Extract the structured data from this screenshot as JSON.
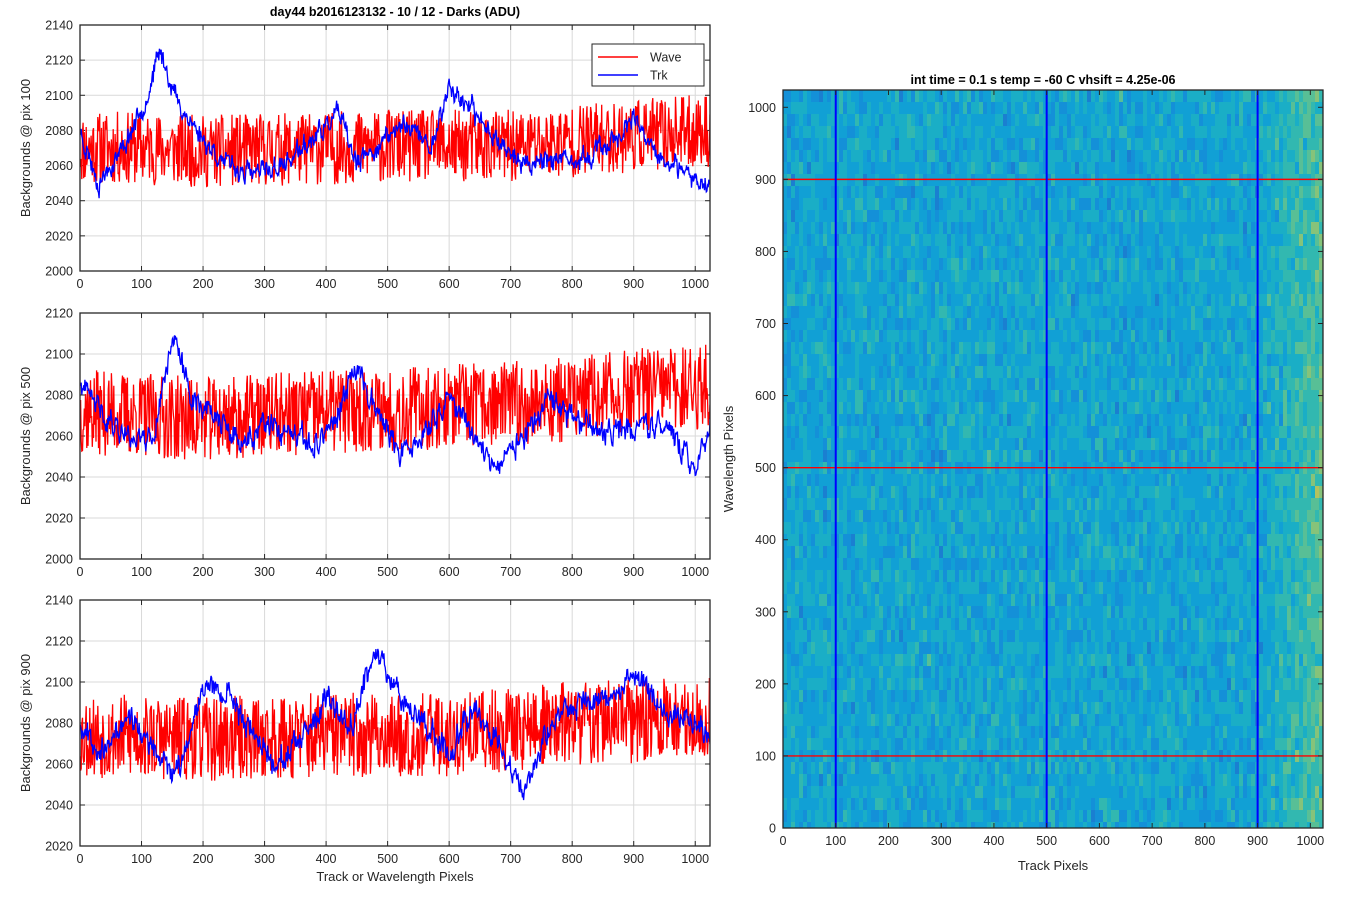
{
  "figure_title": "day44 b2016123132 - 10 / 12 - Darks (ADU)",
  "colors": {
    "wave": "#ff0000",
    "trk": "#0000ff",
    "grid": "#d9d9d9",
    "axis": "#262626"
  },
  "chart_data": [
    {
      "type": "line",
      "panel": "top-left",
      "title": "day44 b2016123132 - 10 / 12 - Darks (ADU)",
      "xlabel": "",
      "ylabel": "Backgrounds @ pix 100",
      "xlim": [
        0,
        1024
      ],
      "ylim": [
        2000,
        2140
      ],
      "xticks": [
        0,
        100,
        200,
        300,
        400,
        500,
        600,
        700,
        800,
        900,
        1000
      ],
      "yticks": [
        2000,
        2020,
        2040,
        2060,
        2080,
        2100,
        2120,
        2140
      ],
      "grid": true,
      "legend": "top-right",
      "series": [
        {
          "name": "Wave",
          "color": "#ff0000",
          "mean": 2070,
          "noise": 13,
          "seed": 11,
          "x": [
            0,
            100,
            200,
            300,
            400,
            500,
            600,
            700,
            800,
            900,
            1024
          ],
          "y": [
            2070,
            2070,
            2068,
            2069,
            2070,
            2071,
            2071,
            2071,
            2074,
            2077,
            2080
          ]
        },
        {
          "name": "Trk",
          "color": "#0000ff",
          "mean": 2070,
          "noise": 4,
          "seed": 23,
          "x": [
            0,
            30,
            70,
            110,
            130,
            160,
            200,
            240,
            280,
            330,
            380,
            420,
            450,
            480,
            530,
            570,
            600,
            640,
            680,
            720,
            760,
            800,
            850,
            900,
            940,
            980,
            1024
          ],
          "y": [
            2080,
            2050,
            2070,
            2100,
            2125,
            2095,
            2075,
            2060,
            2055,
            2060,
            2075,
            2090,
            2060,
            2070,
            2085,
            2070,
            2105,
            2090,
            2075,
            2060,
            2065,
            2060,
            2070,
            2085,
            2065,
            2055,
            2050
          ]
        }
      ]
    },
    {
      "type": "line",
      "panel": "middle-left",
      "title": "",
      "xlabel": "",
      "ylabel": "Backgrounds @ pix 500",
      "xlim": [
        0,
        1024
      ],
      "ylim": [
        2000,
        2120
      ],
      "xticks": [
        0,
        100,
        200,
        300,
        400,
        500,
        600,
        700,
        800,
        900,
        1000
      ],
      "yticks": [
        2000,
        2020,
        2040,
        2060,
        2080,
        2100,
        2120
      ],
      "grid": true,
      "series": [
        {
          "name": "Wave",
          "color": "#ff0000",
          "mean": 2072,
          "noise": 13,
          "seed": 37,
          "x": [
            0,
            200,
            400,
            600,
            800,
            900,
            1024
          ],
          "y": [
            2072,
            2068,
            2072,
            2074,
            2078,
            2082,
            2084
          ]
        },
        {
          "name": "Trk",
          "color": "#0000ff",
          "mean": 2065,
          "noise": 4,
          "seed": 41,
          "x": [
            0,
            40,
            80,
            120,
            150,
            180,
            220,
            260,
            300,
            340,
            380,
            420,
            450,
            480,
            520,
            560,
            600,
            640,
            680,
            720,
            760,
            800,
            850,
            900,
            950,
            1000,
            1024
          ],
          "y": [
            2085,
            2070,
            2060,
            2060,
            2110,
            2080,
            2070,
            2055,
            2065,
            2060,
            2055,
            2070,
            2095,
            2075,
            2050,
            2060,
            2080,
            2060,
            2045,
            2060,
            2075,
            2070,
            2060,
            2065,
            2065,
            2045,
            2065
          ]
        }
      ]
    },
    {
      "type": "line",
      "panel": "bottom-left",
      "title": "",
      "xlabel": "Track or Wavelength Pixels",
      "ylabel": "Backgrounds @ pix 900",
      "xlim": [
        0,
        1024
      ],
      "ylim": [
        2020,
        2140
      ],
      "xticks": [
        0,
        100,
        200,
        300,
        400,
        500,
        600,
        700,
        800,
        900,
        1000
      ],
      "yticks": [
        2020,
        2040,
        2060,
        2080,
        2100,
        2120,
        2140
      ],
      "grid": true,
      "series": [
        {
          "name": "Wave",
          "color": "#ff0000",
          "mean": 2075,
          "noise": 13,
          "seed": 53,
          "x": [
            0,
            200,
            400,
            600,
            800,
            1024
          ],
          "y": [
            2074,
            2072,
            2074,
            2074,
            2080,
            2082
          ]
        },
        {
          "name": "Trk",
          "color": "#0000ff",
          "mean": 2070,
          "noise": 4,
          "seed": 67,
          "x": [
            0,
            40,
            80,
            120,
            160,
            200,
            240,
            280,
            320,
            360,
            400,
            440,
            480,
            520,
            560,
            600,
            640,
            680,
            720,
            760,
            800,
            850,
            900,
            950,
            1000,
            1024
          ],
          "y": [
            2080,
            2065,
            2085,
            2065,
            2055,
            2100,
            2095,
            2075,
            2060,
            2070,
            2090,
            2080,
            2115,
            2095,
            2080,
            2065,
            2090,
            2070,
            2045,
            2075,
            2090,
            2090,
            2105,
            2085,
            2080,
            2075
          ]
        }
      ]
    },
    {
      "type": "heatmap",
      "panel": "right",
      "title": "int time = 0.1 s   temp = -60 C   vhsift = 4.25e-06",
      "xlabel": "Track Pixels",
      "ylabel": "Wavelength Pixels",
      "xlim": [
        0,
        1024
      ],
      "ylim": [
        0,
        1024
      ],
      "xticks": [
        0,
        100,
        200,
        300,
        400,
        500,
        600,
        700,
        800,
        900,
        1000
      ],
      "yticks": [
        0,
        100,
        200,
        300,
        400,
        500,
        600,
        700,
        800,
        900,
        1000
      ],
      "colormap": "parula",
      "vertical_markers": {
        "color": "#0000ff",
        "x": [
          100,
          500,
          900
        ]
      },
      "horizontal_markers": {
        "color": "#ff0000",
        "y": [
          100,
          500,
          900
        ]
      }
    }
  ],
  "legend": {
    "entries": [
      {
        "label": "Wave",
        "color": "#ff0000"
      },
      {
        "label": "Trk",
        "color": "#0000ff"
      }
    ]
  }
}
